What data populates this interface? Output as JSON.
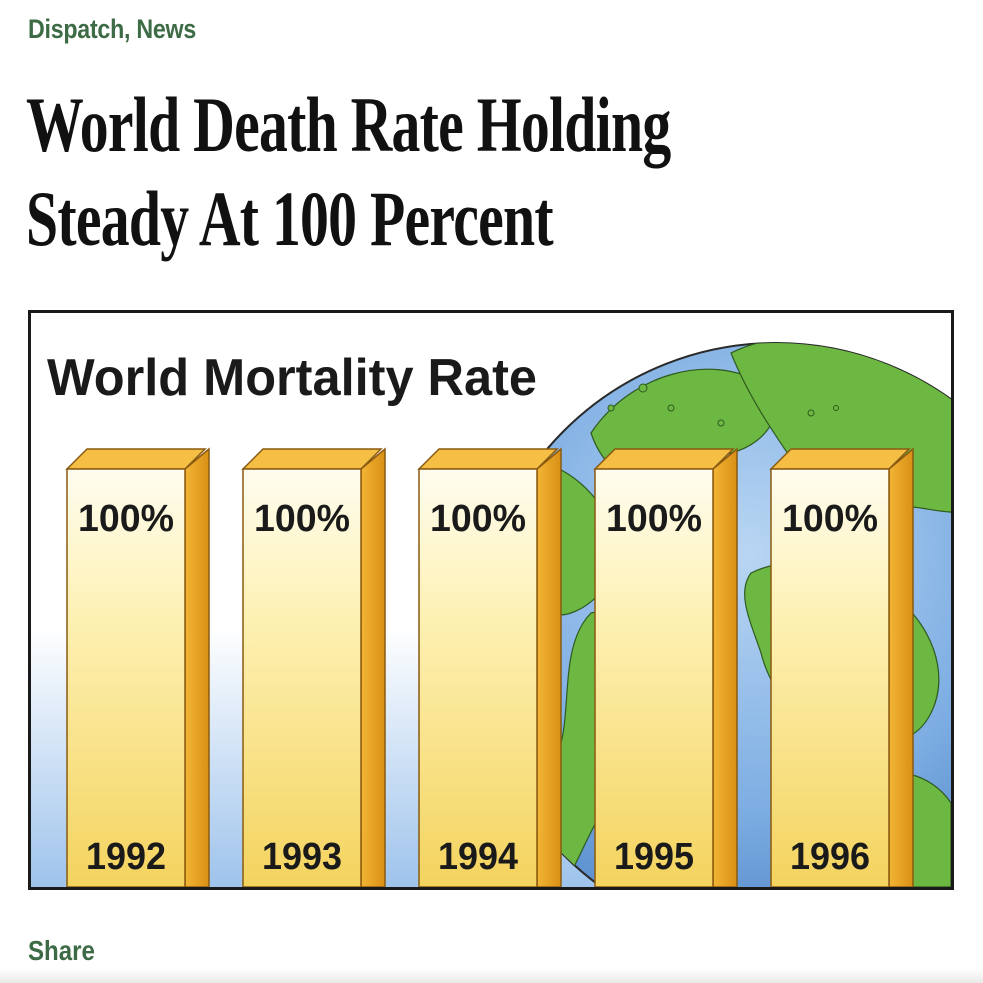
{
  "header": {
    "section": "Dispatch, News",
    "headline_line1": "World Death Rate Holding",
    "headline_line2": "Steady At 100 Percent"
  },
  "footer": {
    "share_label": "Share"
  },
  "colors": {
    "accent_green": "#3d6b45",
    "bar_face_top": "#fffbe0",
    "bar_face_bottom": "#f7d765",
    "bar_side": "#e8a623",
    "bar_top": "#f4bf44",
    "ocean": "#6f9fd8",
    "land": "#69b63f"
  },
  "chart_data": {
    "type": "bar",
    "title": "World Mortality Rate",
    "categories": [
      "1992",
      "1993",
      "1994",
      "1995",
      "1996"
    ],
    "values": [
      100,
      100,
      100,
      100,
      100
    ],
    "value_labels": [
      "100%",
      "100%",
      "100%",
      "100%",
      "100%"
    ],
    "unit": "%",
    "ylim": [
      0,
      100
    ],
    "grid": false,
    "legend": "none",
    "background_art": "globe-illustration"
  }
}
